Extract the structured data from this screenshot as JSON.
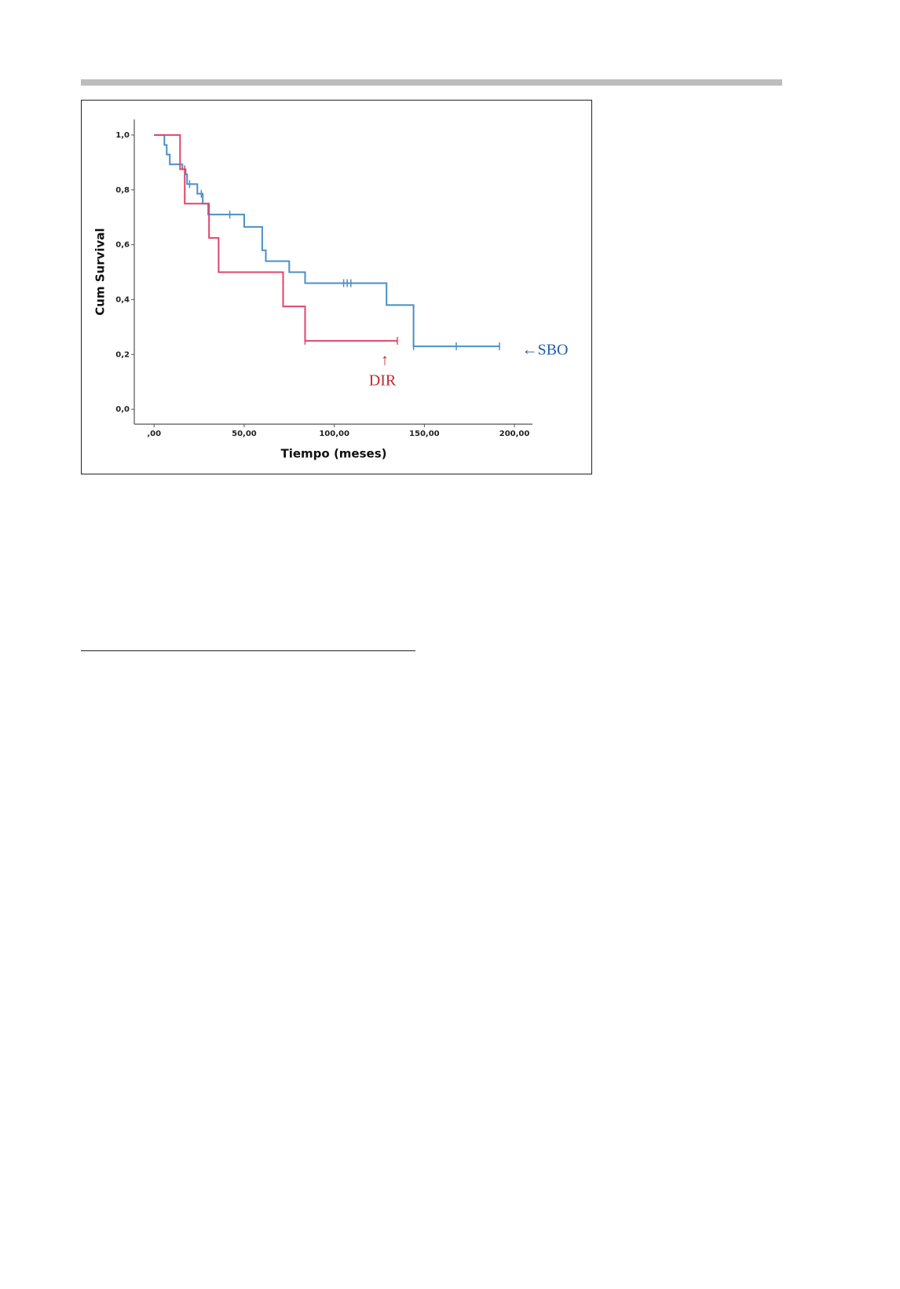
{
  "chart_data": {
    "type": "step",
    "x_label": "Tiempo (meses)",
    "y_label": "Cum Survival",
    "xlim": [
      -11,
      210
    ],
    "ylim": [
      -0.054,
      1.057
    ],
    "xticks": [
      {
        "value": 0,
        "label": ",00"
      },
      {
        "value": 50,
        "label": "50,00"
      },
      {
        "value": 100,
        "label": "100,00"
      },
      {
        "value": 150,
        "label": "150,00"
      },
      {
        "value": 200,
        "label": "200,00"
      }
    ],
    "yticks": [
      {
        "value": 0,
        "label": "0,0"
      },
      {
        "value": 0.2,
        "label": "0,2"
      },
      {
        "value": 0.4,
        "label": "0,4"
      },
      {
        "value": 0.6,
        "label": "0,6"
      },
      {
        "value": 0.8,
        "label": "0,8"
      },
      {
        "value": 1,
        "label": "1,0"
      }
    ],
    "series": [
      {
        "color": "#4a8fc4",
        "x": [
          0,
          5.7,
          7,
          8.7,
          15.7,
          17.5,
          18.3,
          24,
          27,
          30,
          50,
          60,
          62,
          75,
          83.8,
          129,
          144,
          191.7
        ],
        "values": [
          1,
          0.964,
          0.929,
          0.893,
          0.875,
          0.857,
          0.821,
          0.786,
          0.75,
          0.71,
          0.665,
          0.58,
          0.54,
          0.5,
          0.46,
          0.38,
          0.23,
          0.23
        ],
        "censored_x": [
          19.7,
          26.2,
          42,
          105.2,
          107.2,
          109.2,
          144,
          167.7,
          191.7
        ],
        "censored_values": [
          0.821,
          0.786,
          0.71,
          0.46,
          0.46,
          0.46,
          0.23,
          0.23,
          0.23
        ]
      },
      {
        "color": "#e0456a",
        "x": [
          0,
          14.4,
          17,
          30.5,
          35.8,
          71.6,
          83.8,
          135
        ],
        "values": [
          1,
          0.875,
          0.75,
          0.625,
          0.5,
          0.375,
          0.25,
          0.25
        ],
        "censored_x": [
          17,
          83.8,
          135
        ],
        "censored_values": [
          0.875,
          0.25,
          0.25
        ]
      }
    ],
    "annotations": [
      {
        "text": "←SBO",
        "color": "#1f5fa8"
      },
      {
        "text": "↑",
        "color": "#c0282d"
      },
      {
        "text": "DIR",
        "color": "#c0282d"
      }
    ]
  }
}
